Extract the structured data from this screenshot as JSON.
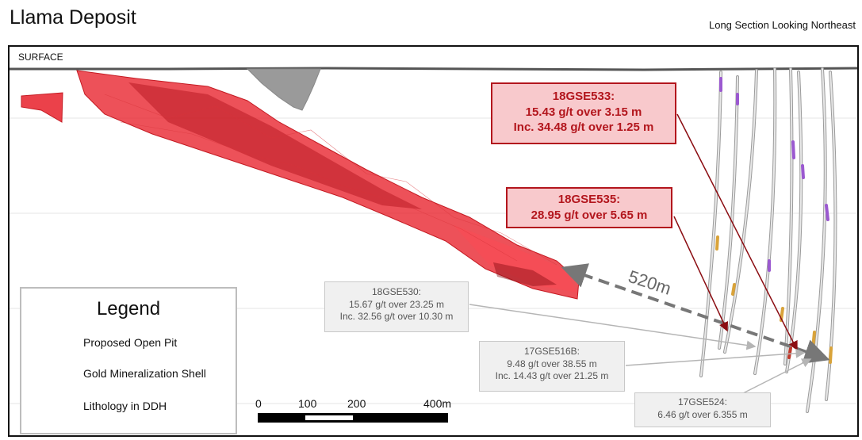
{
  "header": {
    "title": "Llama Deposit",
    "subtitle": "Long Section Looking Northeast"
  },
  "section": {
    "surface_label": "SURFACE",
    "distance_label": "520m"
  },
  "callouts_red": [
    {
      "hole": "18GSE533:",
      "line1": "15.43 g/t over 3.15 m",
      "line2": "Inc. 34.48 g/t over 1.25 m"
    },
    {
      "hole": "18GSE535:",
      "line1": "28.95 g/t over 5.65 m"
    }
  ],
  "callouts_grey": [
    {
      "hole": "18GSE530:",
      "line1": "15.67 g/t over 23.25 m",
      "line2": "Inc. 32.56 g/t over 10.30 m"
    },
    {
      "hole": "17GSE516B:",
      "line1": "9.48 g/t over 38.55 m",
      "line2": "Inc. 14.43 g/t over 21.25 m"
    },
    {
      "hole": "17GSE524:",
      "line1": "6.46 g/t over 6.355 m"
    }
  ],
  "legend": {
    "title": "Legend",
    "items": [
      {
        "label": "Proposed Open Pit",
        "icon": "open-pit-icon"
      },
      {
        "label": "Gold Mineralization Shell",
        "icon": "mineralization-shell-icon"
      },
      {
        "label": "Lithology in DDH",
        "icon": "drill-hole-icon"
      }
    ]
  },
  "scale_bar": {
    "labels": [
      "0",
      "100",
      "200",
      "400m"
    ]
  },
  "colors": {
    "shell": "#e8202a",
    "shell_dark": "#b01018",
    "pit": "#9a9a9a",
    "callout_red_border": "#b3161d",
    "callout_red_fill": "#f8c9cc",
    "callout_grey_fill": "#f0f0f0"
  }
}
